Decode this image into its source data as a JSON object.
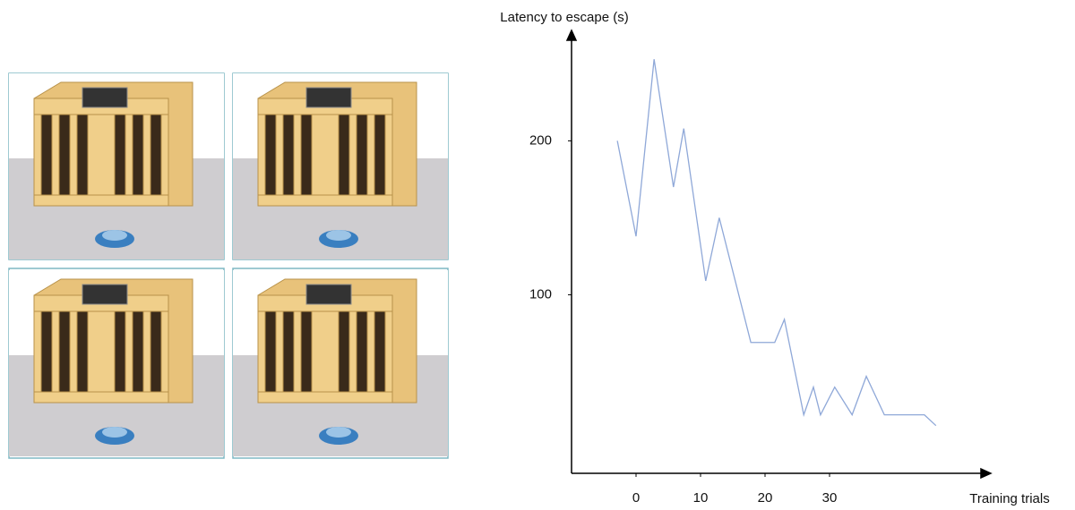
{
  "chart_data": {
    "type": "line",
    "y_label": "Latency to escape (s)",
    "x_label": "Training trials",
    "x": [
      -2.9,
      0,
      2.8,
      5.8,
      7.4,
      10.8,
      12.9,
      17.8,
      21.5,
      23,
      26,
      27.5,
      28.6,
      30.8,
      33.5,
      35.7,
      38.5,
      44.7,
      46.5
    ],
    "series": [
      {
        "color": "#8fa8d8",
        "values": [
          200,
          138,
          253,
          170,
          208,
          109,
          150,
          69,
          69,
          84,
          22,
          40,
          22,
          40,
          22,
          47,
          22,
          22,
          15
        ]
      }
    ],
    "xlim": [
      -10,
      55
    ],
    "xticks": [
      0,
      10,
      20,
      30
    ],
    "ylim": [
      -16,
      270
    ],
    "yticks": [
      100,
      200
    ]
  }
}
